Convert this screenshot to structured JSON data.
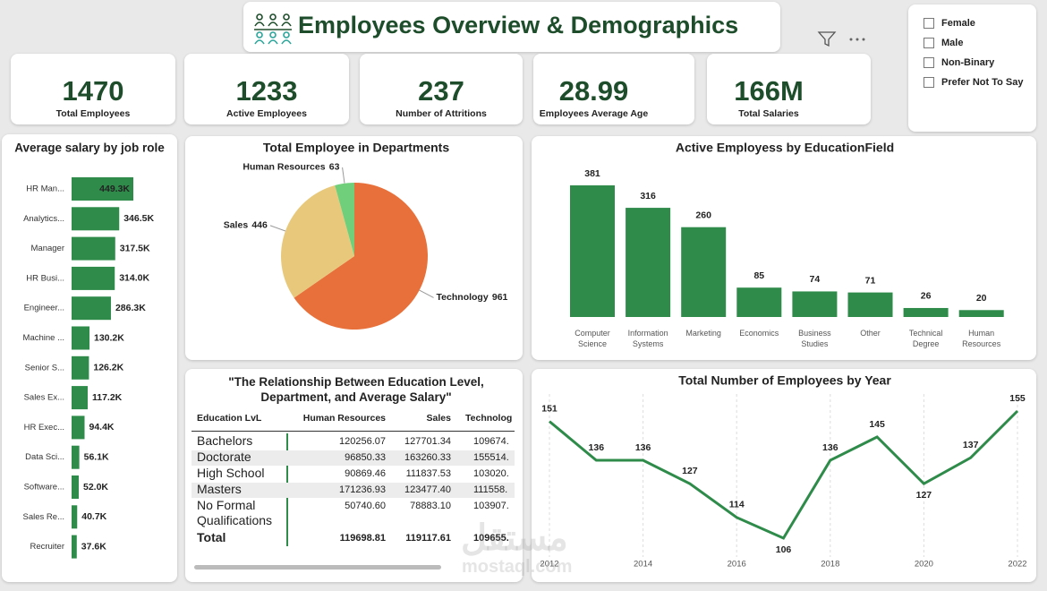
{
  "header": {
    "title": "Employees Overview & Demographics"
  },
  "kpis": [
    {
      "value": 1470,
      "label": "Total Employees"
    },
    {
      "value": 1233,
      "label": "Active Employees"
    },
    {
      "value": 237,
      "label": "Number of Attritions"
    },
    {
      "value": 28.99,
      "label": "Employees Average Age"
    },
    {
      "value": "166M",
      "label": "Total Salaries"
    }
  ],
  "slicer": {
    "options": [
      "Female",
      "Male",
      "Non-Binary",
      "Prefer Not To Say"
    ]
  },
  "table": {
    "title": "\"The Relationship Between Education Level, Department, and Average Salary\"",
    "columns": [
      "Education LvL",
      "Human Resources",
      "Sales",
      "Technolog"
    ],
    "rows": [
      [
        "Bachelors",
        "120256.07",
        "127701.34",
        "109674."
      ],
      [
        "Doctorate",
        "96850.33",
        "163260.33",
        "155514."
      ],
      [
        "High School",
        "90869.46",
        "111837.53",
        "103020."
      ],
      [
        "Masters",
        "171236.93",
        "123477.40",
        "111558."
      ],
      [
        "No Formal Qualifications",
        "50740.60",
        "78883.10",
        "103907."
      ],
      [
        "Total",
        "119698.81",
        "119117.61",
        "109655."
      ]
    ]
  },
  "watermark": [
    "مستقل",
    "mostaql.com"
  ],
  "chart_data": [
    {
      "type": "bar",
      "orientation": "horizontal",
      "title": "Average salary by job role",
      "categories": [
        "HR Man...",
        "Analytics...",
        "Manager",
        "HR Busi...",
        "Engineer...",
        "Machine ...",
        "Senior S...",
        "Sales Ex...",
        "HR Exec...",
        "Data Sci...",
        "Software...",
        "Sales Re...",
        "Recruiter"
      ],
      "values": [
        449300,
        346500,
        317500,
        314000,
        286300,
        130200,
        126200,
        117200,
        94400,
        56100,
        52000,
        40700,
        37600
      ],
      "value_labels": [
        "449.3K",
        "346.5K",
        "317.5K",
        "314.0K",
        "286.3K",
        "130.2K",
        "126.2K",
        "117.2K",
        "94.4K",
        "56.1K",
        "52.0K",
        "40.7K",
        "37.6K"
      ],
      "color": "#2e8b4a"
    },
    {
      "type": "pie",
      "title": "Total Employee in Departments",
      "categories": [
        "Technology",
        "Sales",
        "Human Resources"
      ],
      "values": [
        961,
        446,
        63
      ],
      "colors": [
        "#e8703a",
        "#e8c97c",
        "#6fcf7a"
      ]
    },
    {
      "type": "bar",
      "title": "Active Employess by EducationField",
      "categories": [
        "Computer Science",
        "Information Systems",
        "Marketing",
        "Economics",
        "Business Studies",
        "Other",
        "Technical Degree",
        "Human Resources"
      ],
      "values": [
        381,
        316,
        260,
        85,
        74,
        71,
        26,
        20
      ],
      "color": "#2e8b4a"
    },
    {
      "type": "line",
      "title": "Total Number of Employees by Year",
      "x": [
        2012,
        2013,
        2014,
        2015,
        2016,
        2017,
        2018,
        2019,
        2020,
        2021,
        2022
      ],
      "values": [
        151,
        136,
        136,
        127,
        114,
        106,
        136,
        145,
        127,
        137,
        155
      ],
      "xlim": [
        2012,
        2022
      ],
      "xticks": [
        2012,
        2014,
        2016,
        2018,
        2020,
        2022
      ],
      "grid": true,
      "color": "#2e8b4a"
    }
  ]
}
